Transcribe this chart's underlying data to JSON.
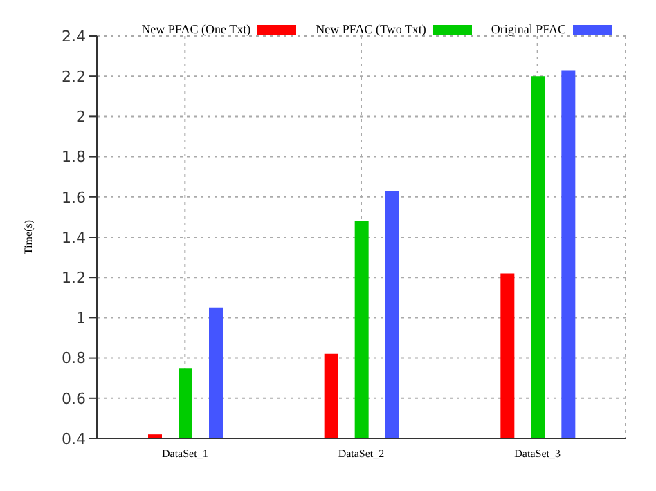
{
  "chart_data": {
    "type": "bar",
    "ylabel": "Time(s)",
    "categories": [
      "DataSet_1",
      "DataSet_2",
      "DataSet_3"
    ],
    "series": [
      {
        "name": "New PFAC (One Txt)",
        "color": "#ff0000",
        "values": [
          0.42,
          0.82,
          1.22
        ]
      },
      {
        "name": "New PFAC (Two Txt)",
        "color": "#00cc00",
        "values": [
          0.75,
          1.48,
          2.2
        ]
      },
      {
        "name": "Original PFAC",
        "color": "#4455ff",
        "values": [
          1.05,
          1.63,
          2.23
        ]
      }
    ],
    "ylim": [
      0.4,
      2.4
    ],
    "yticks": [
      0.4,
      0.6,
      0.8,
      1,
      1.2,
      1.4,
      1.6,
      1.8,
      2,
      2.2,
      2.4
    ],
    "grid": true,
    "legend": "top"
  }
}
